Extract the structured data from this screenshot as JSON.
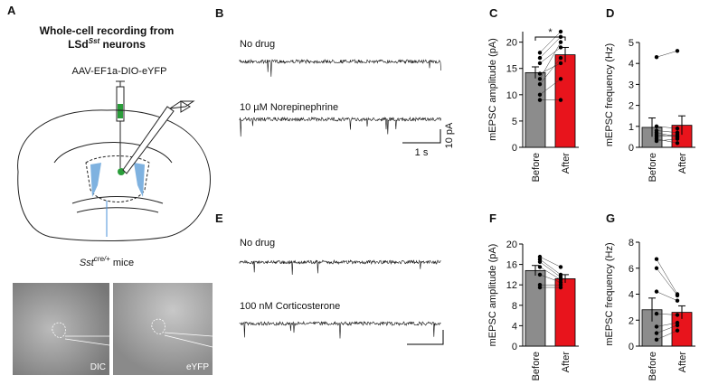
{
  "panel_a": {
    "label": "A",
    "title_line1": "Whole-cell recording from",
    "title_line2": [
      "LSd",
      "Sst",
      " neurons"
    ],
    "virus": "AAV-EF1a-DIO-eYFP",
    "mouse": [
      "Sst",
      "cre/+",
      " mice"
    ],
    "image_labels": [
      "DIC",
      "eYFP"
    ]
  },
  "panel_b": {
    "label": "B",
    "conditions": [
      "No drug",
      "10 µM Norepinephrine"
    ],
    "scale_x": "1 s",
    "scale_y": "10 pA"
  },
  "panel_e": {
    "label": "E",
    "conditions": [
      "No drug",
      "100 nM Corticosterone"
    ]
  },
  "chart_data": [
    {
      "type": "bar",
      "label": "C",
      "ylabel": "mEPSC amplitude (pA)",
      "categories": [
        "Before",
        "After"
      ],
      "values": [
        14.2,
        17.6
      ],
      "errors": [
        1.1,
        1.4
      ],
      "colors": [
        "#8c8c8c",
        "#e8141c"
      ],
      "ylim": [
        0,
        22
      ],
      "yticks": [
        0,
        5,
        10,
        15,
        20
      ],
      "annotation": "*",
      "points": [
        [
          18,
          22
        ],
        [
          17,
          21
        ],
        [
          16,
          19
        ],
        [
          14,
          16
        ],
        [
          13,
          20
        ],
        [
          12,
          17
        ],
        [
          10,
          13
        ],
        [
          9,
          9
        ]
      ]
    },
    {
      "type": "bar",
      "label": "D",
      "ylabel": "mEPSC frequency (Hz)",
      "categories": [
        "Before",
        "After"
      ],
      "values": [
        0.95,
        1.05
      ],
      "errors": [
        0.45,
        0.45
      ],
      "colors": [
        "#8c8c8c",
        "#e8141c"
      ],
      "ylim": [
        0,
        5
      ],
      "yticks": [
        0,
        1,
        2,
        3,
        4,
        5
      ],
      "points": [
        [
          4.3,
          4.6
        ],
        [
          1,
          0.9
        ],
        [
          0.8,
          0.7
        ],
        [
          0.7,
          0.5
        ],
        [
          0.5,
          0.6
        ],
        [
          0.3,
          0.4
        ],
        [
          0.4,
          0.2
        ],
        [
          0.6,
          0.5
        ]
      ]
    },
    {
      "type": "bar",
      "label": "F",
      "ylabel": "mEPSC amplitude (pA)",
      "categories": [
        "Before",
        "After"
      ],
      "values": [
        14.8,
        13.2
      ],
      "errors": [
        1.0,
        0.8
      ],
      "colors": [
        "#8c8c8c",
        "#e8141c"
      ],
      "ylim": [
        0,
        20
      ],
      "yticks": [
        0,
        4,
        8,
        12,
        16,
        20
      ],
      "points": [
        [
          17.5,
          15.5
        ],
        [
          17,
          14
        ],
        [
          16.5,
          13.5
        ],
        [
          15.5,
          13
        ],
        [
          14,
          12.5
        ],
        [
          12,
          12
        ],
        [
          11.5,
          11.5
        ]
      ]
    },
    {
      "type": "bar",
      "label": "G",
      "ylabel": "mEPSC frequency (Hz)",
      "categories": [
        "Before",
        "After"
      ],
      "values": [
        2.8,
        2.6
      ],
      "errors": [
        0.9,
        0.5
      ],
      "colors": [
        "#8c8c8c",
        "#e8141c"
      ],
      "ylim": [
        0,
        8
      ],
      "yticks": [
        0,
        2,
        4,
        6,
        8
      ],
      "points": [
        [
          6.7,
          4
        ],
        [
          6,
          3.9
        ],
        [
          4.2,
          3.5
        ],
        [
          2.5,
          2.4
        ],
        [
          1.5,
          1.8
        ],
        [
          1,
          1.6
        ],
        [
          0.5,
          1.2
        ]
      ]
    }
  ]
}
